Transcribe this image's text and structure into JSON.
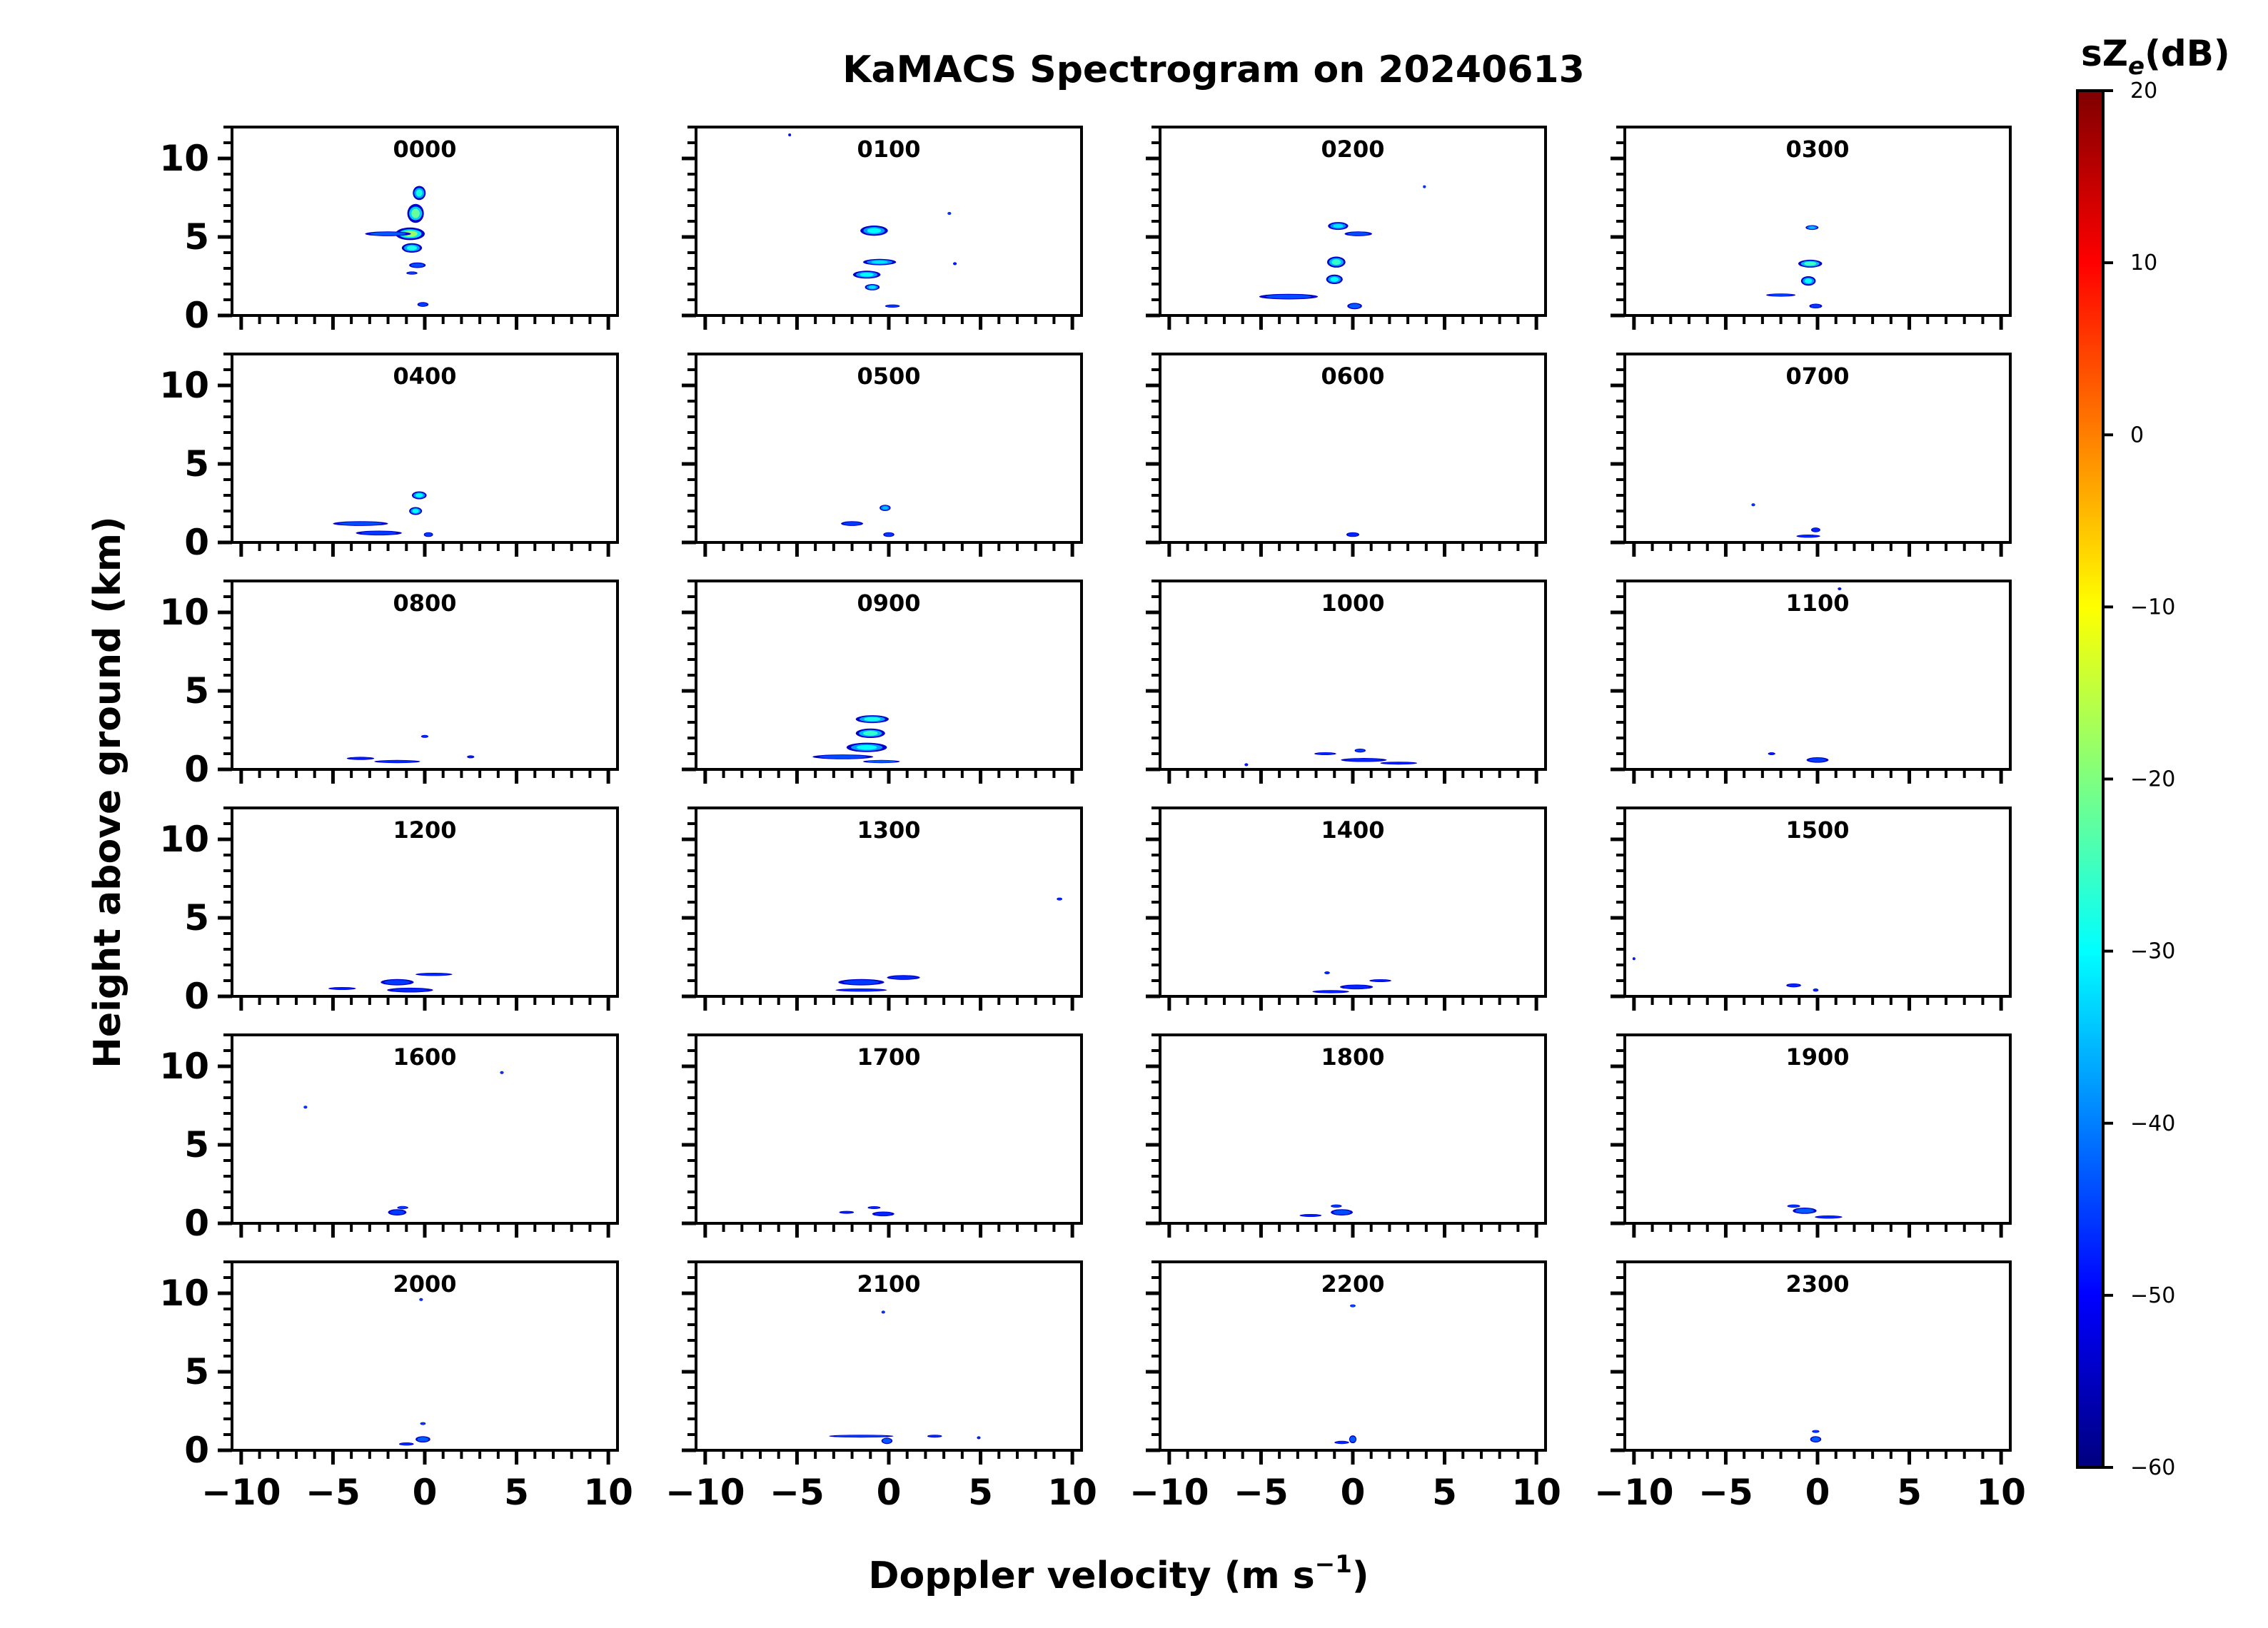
{
  "chart_data": {
    "type": "heatmap",
    "title": "KaMACS Spectrogram on 20240613",
    "xlabel_main": "Doppler velocity (m s",
    "xlabel_sup": "−1",
    "xlabel_close": ")",
    "ylabel": "Height above ground (km)",
    "xlim": [
      -10.5,
      10.5
    ],
    "ylim": [
      0,
      12
    ],
    "x_ticks": [
      -10,
      -5,
      0,
      5,
      10
    ],
    "x_tick_labels": [
      "−10",
      "−5",
      "0",
      "5",
      "10"
    ],
    "y_ticks": [
      0,
      5,
      10
    ],
    "y_tick_labels": [
      "0",
      "5",
      "10"
    ],
    "colorbar": {
      "label_main": "sZ",
      "label_sub": "e",
      "label_unit": "(dB)",
      "min": -60,
      "max": 20,
      "ticks": [
        20,
        10,
        0,
        -10,
        -20,
        -30,
        -40,
        -50,
        -60
      ],
      "tick_labels": [
        "20",
        "10",
        "0",
        "−10",
        "−20",
        "−30",
        "−40",
        "−50",
        "−60"
      ],
      "colormap": "jet",
      "colors": [
        "#00007f",
        "#0000ff",
        "#007fff",
        "#00ffff",
        "#7fff7f",
        "#ffff00",
        "#ff7f00",
        "#ff0000",
        "#7f0000"
      ]
    },
    "panels": [
      {
        "label": "0000",
        "blobs": [
          [
            -0.8,
            5.2,
            1.6,
            0.8,
            -18
          ],
          [
            -0.5,
            6.5,
            0.9,
            1.2,
            -22
          ],
          [
            -0.3,
            7.8,
            0.7,
            0.9,
            -28
          ],
          [
            -2,
            5.2,
            2.5,
            0.3,
            -40
          ],
          [
            -0.7,
            4.3,
            1.1,
            0.6,
            -28
          ],
          [
            -0.4,
            3.2,
            0.9,
            0.35,
            -42
          ],
          [
            -0.7,
            2.7,
            0.6,
            0.2,
            -45
          ],
          [
            -0.1,
            0.7,
            0.6,
            0.3,
            -45
          ]
        ]
      },
      {
        "label": "0100",
        "blobs": [
          [
            -0.8,
            5.4,
            1.5,
            0.65,
            -30
          ],
          [
            -0.5,
            3.4,
            1.8,
            0.4,
            -32
          ],
          [
            -1.2,
            2.6,
            1.5,
            0.5,
            -30
          ],
          [
            -0.9,
            1.8,
            0.8,
            0.4,
            -32
          ],
          [
            0.2,
            0.6,
            0.8,
            0.2,
            -45
          ],
          [
            3.3,
            6.5,
            0.2,
            0.1,
            -45
          ],
          [
            3.6,
            3.3,
            0.2,
            0.1,
            -50
          ],
          [
            -5.4,
            11.5,
            0.1,
            0.1,
            -50
          ]
        ]
      },
      {
        "label": "0200",
        "blobs": [
          [
            -0.8,
            5.7,
            1.1,
            0.5,
            -32
          ],
          [
            0.3,
            5.2,
            1.5,
            0.3,
            -42
          ],
          [
            -0.9,
            3.4,
            1.0,
            0.7,
            -26
          ],
          [
            -1.0,
            2.3,
            0.9,
            0.6,
            -30
          ],
          [
            -3.5,
            1.2,
            3.2,
            0.35,
            -42
          ],
          [
            0.1,
            0.6,
            0.8,
            0.4,
            -40
          ],
          [
            3.9,
            8.2,
            0.15,
            0.1,
            -45
          ]
        ]
      },
      {
        "label": "0300",
        "blobs": [
          [
            -0.3,
            5.6,
            0.7,
            0.3,
            -35
          ],
          [
            -0.4,
            3.3,
            1.3,
            0.5,
            -25
          ],
          [
            -0.5,
            2.2,
            0.8,
            0.6,
            -30
          ],
          [
            -2.0,
            1.3,
            1.6,
            0.2,
            -45
          ],
          [
            -0.1,
            0.6,
            0.7,
            0.3,
            -45
          ]
        ]
      },
      {
        "label": "0400",
        "blobs": [
          [
            -0.3,
            3.0,
            0.8,
            0.5,
            -30
          ],
          [
            -0.5,
            2.0,
            0.7,
            0.5,
            -30
          ],
          [
            -3.5,
            1.2,
            3.0,
            0.3,
            -42
          ],
          [
            -2.5,
            0.6,
            2.5,
            0.3,
            -45
          ],
          [
            0.2,
            0.5,
            0.5,
            0.3,
            -45
          ]
        ]
      },
      {
        "label": "0500",
        "blobs": [
          [
            -0.2,
            2.2,
            0.6,
            0.4,
            -35
          ],
          [
            -2,
            1.2,
            1.2,
            0.3,
            -45
          ],
          [
            0,
            0.5,
            0.6,
            0.3,
            -45
          ]
        ]
      },
      {
        "label": "0600",
        "blobs": [
          [
            0,
            0.5,
            0.7,
            0.3,
            -48
          ]
        ]
      },
      {
        "label": "0700",
        "blobs": [
          [
            -3.5,
            2.4,
            0.2,
            0.1,
            -45
          ],
          [
            -0.1,
            0.8,
            0.5,
            0.3,
            -48
          ],
          [
            -0.5,
            0.4,
            1.3,
            0.2,
            -48
          ]
        ]
      },
      {
        "label": "0800",
        "blobs": [
          [
            0,
            2.1,
            0.4,
            0.1,
            -48
          ],
          [
            -3.5,
            0.7,
            1.5,
            0.2,
            -50
          ],
          [
            -1.5,
            0.5,
            2.5,
            0.2,
            -48
          ],
          [
            2.5,
            0.8,
            0.4,
            0.1,
            -50
          ]
        ]
      },
      {
        "label": "0900",
        "blobs": [
          [
            -0.9,
            3.2,
            1.8,
            0.5,
            -28
          ],
          [
            -1.0,
            2.3,
            1.6,
            0.6,
            -26
          ],
          [
            -1.2,
            1.4,
            2.2,
            0.6,
            -30
          ],
          [
            -2.5,
            0.8,
            3.3,
            0.3,
            -42
          ],
          [
            -0.4,
            0.5,
            2.0,
            0.2,
            -40
          ]
        ]
      },
      {
        "label": "1000",
        "blobs": [
          [
            0.4,
            1.2,
            0.6,
            0.25,
            -45
          ],
          [
            -1.5,
            1.0,
            1.2,
            0.1,
            -48
          ],
          [
            0.6,
            0.6,
            2.5,
            0.25,
            -48
          ],
          [
            2.5,
            0.4,
            2.0,
            0.15,
            -50
          ],
          [
            -5.8,
            0.3,
            0.2,
            0.1,
            -50
          ]
        ]
      },
      {
        "label": "1100",
        "blobs": [
          [
            0,
            0.6,
            1.2,
            0.35,
            -45
          ],
          [
            -2.5,
            1.0,
            0.4,
            0.1,
            -50
          ],
          [
            1.2,
            11.5,
            0.2,
            0.1,
            -50
          ]
        ]
      },
      {
        "label": "1200",
        "blobs": [
          [
            -1.5,
            0.9,
            1.8,
            0.4,
            -45
          ],
          [
            0.5,
            1.4,
            2.0,
            0.2,
            -48
          ],
          [
            -0.8,
            0.4,
            2.5,
            0.3,
            -48
          ],
          [
            -4.5,
            0.5,
            1.5,
            0.15,
            -50
          ]
        ]
      },
      {
        "label": "1300",
        "blobs": [
          [
            -1.5,
            0.9,
            2.5,
            0.4,
            -45
          ],
          [
            0.8,
            1.2,
            1.8,
            0.3,
            -48
          ],
          [
            -1.5,
            0.4,
            2.8,
            0.2,
            -48
          ],
          [
            9.3,
            6.2,
            0.3,
            0.08,
            -48
          ]
        ]
      },
      {
        "label": "1400",
        "blobs": [
          [
            0.2,
            0.6,
            1.8,
            0.3,
            -48
          ],
          [
            -1.2,
            0.3,
            2.0,
            0.2,
            -50
          ],
          [
            -1.4,
            1.5,
            0.3,
            0.1,
            -48
          ],
          [
            1.5,
            1.0,
            1.2,
            0.15,
            -50
          ]
        ]
      },
      {
        "label": "1500",
        "blobs": [
          [
            -1.3,
            0.7,
            0.8,
            0.25,
            -48
          ],
          [
            -0.1,
            0.4,
            0.3,
            0.2,
            -48
          ],
          [
            -10,
            2.4,
            0.1,
            0.1,
            -50
          ]
        ]
      },
      {
        "label": "1600",
        "blobs": [
          [
            -1.5,
            0.7,
            1.0,
            0.4,
            -45
          ],
          [
            -1.2,
            1.0,
            0.6,
            0.2,
            -45
          ],
          [
            -6.5,
            7.4,
            0.2,
            0.1,
            -45
          ],
          [
            4.2,
            9.6,
            0.2,
            0.1,
            -45
          ]
        ]
      },
      {
        "label": "1700",
        "blobs": [
          [
            -0.3,
            0.6,
            1.2,
            0.3,
            -48
          ],
          [
            -0.8,
            1.0,
            0.7,
            0.15,
            -48
          ],
          [
            -2.3,
            0.7,
            0.8,
            0.15,
            -50
          ]
        ]
      },
      {
        "label": "1800",
        "blobs": [
          [
            -0.6,
            0.7,
            1.2,
            0.4,
            -42
          ],
          [
            -0.9,
            1.1,
            0.6,
            0.2,
            -45
          ],
          [
            -2.3,
            0.5,
            1.2,
            0.1,
            -50
          ]
        ]
      },
      {
        "label": "1900",
        "blobs": [
          [
            -0.7,
            0.8,
            1.3,
            0.4,
            -40
          ],
          [
            0.6,
            0.4,
            1.5,
            0.2,
            -48
          ],
          [
            -1.3,
            1.1,
            0.7,
            0.2,
            -45
          ]
        ]
      },
      {
        "label": "2000",
        "blobs": [
          [
            -0.1,
            0.7,
            0.8,
            0.4,
            -40
          ],
          [
            -0.1,
            1.7,
            0.3,
            0.15,
            -45
          ],
          [
            -0.2,
            9.6,
            0.2,
            0.1,
            -45
          ],
          [
            -1,
            0.4,
            0.8,
            0.2,
            -48
          ]
        ]
      },
      {
        "label": "2100",
        "blobs": [
          [
            -0.1,
            0.6,
            0.6,
            0.4,
            -40
          ],
          [
            -1.5,
            0.9,
            3.5,
            0.1,
            -45
          ],
          [
            2.5,
            0.9,
            0.8,
            0.1,
            -48
          ],
          [
            -0.3,
            8.8,
            0.2,
            0.08,
            -45
          ],
          [
            4.9,
            0.8,
            0.2,
            0.1,
            -48
          ]
        ]
      },
      {
        "label": "2200",
        "blobs": [
          [
            0,
            0.7,
            0.4,
            0.5,
            -40
          ],
          [
            0,
            9.2,
            0.3,
            0.08,
            -42
          ],
          [
            -0.6,
            0.5,
            0.8,
            0.2,
            -48
          ]
        ]
      },
      {
        "label": "2300",
        "blobs": [
          [
            -0.1,
            0.7,
            0.6,
            0.4,
            -40
          ],
          [
            -0.1,
            1.2,
            0.4,
            0.15,
            -45
          ]
        ]
      }
    ]
  }
}
